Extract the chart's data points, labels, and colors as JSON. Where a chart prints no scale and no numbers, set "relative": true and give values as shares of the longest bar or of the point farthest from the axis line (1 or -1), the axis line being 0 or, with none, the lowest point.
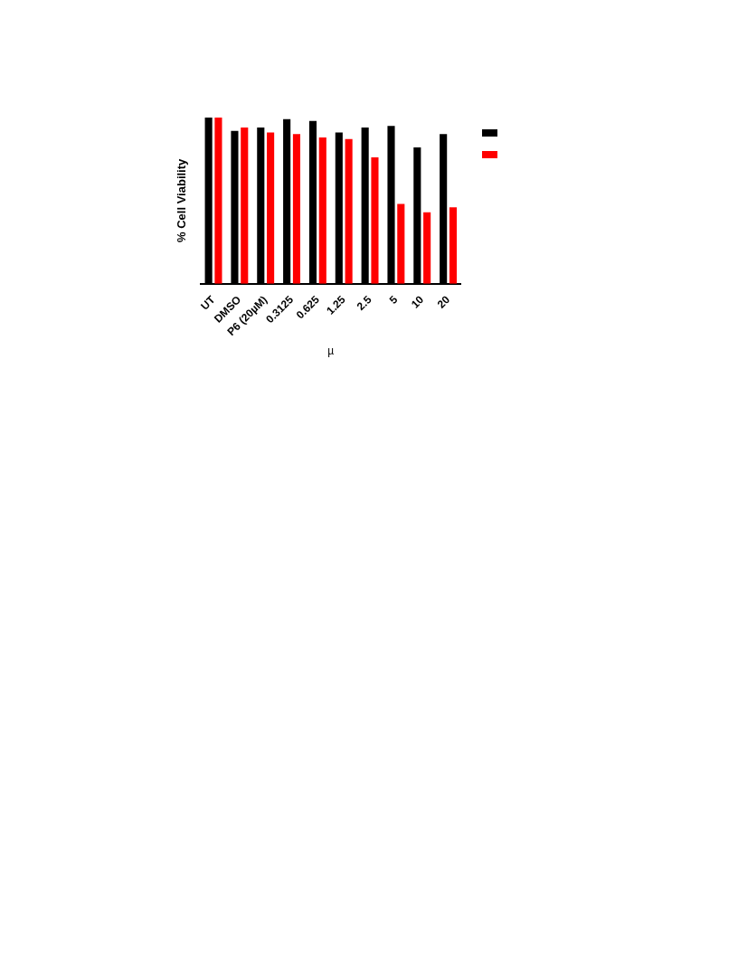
{
  "chart_data": {
    "type": "bar",
    "relative": true,
    "ylabel": "% Cell Viability",
    "xlabel": "µ",
    "grid": false,
    "categories": [
      "UT",
      "DMSO",
      "P6 (20µM)",
      "0.3125",
      "0.625",
      "1.25",
      "2.5",
      "5",
      "10",
      "20"
    ],
    "series": [
      {
        "color": "#000000",
        "values": [
          1.0,
          0.92,
          0.94,
          0.99,
          0.98,
          0.91,
          0.94,
          0.95,
          0.82,
          0.9
        ]
      },
      {
        "color": "#ff0000",
        "values": [
          1.0,
          0.94,
          0.91,
          0.9,
          0.88,
          0.87,
          0.76,
          0.48,
          0.43,
          0.46
        ]
      }
    ]
  }
}
